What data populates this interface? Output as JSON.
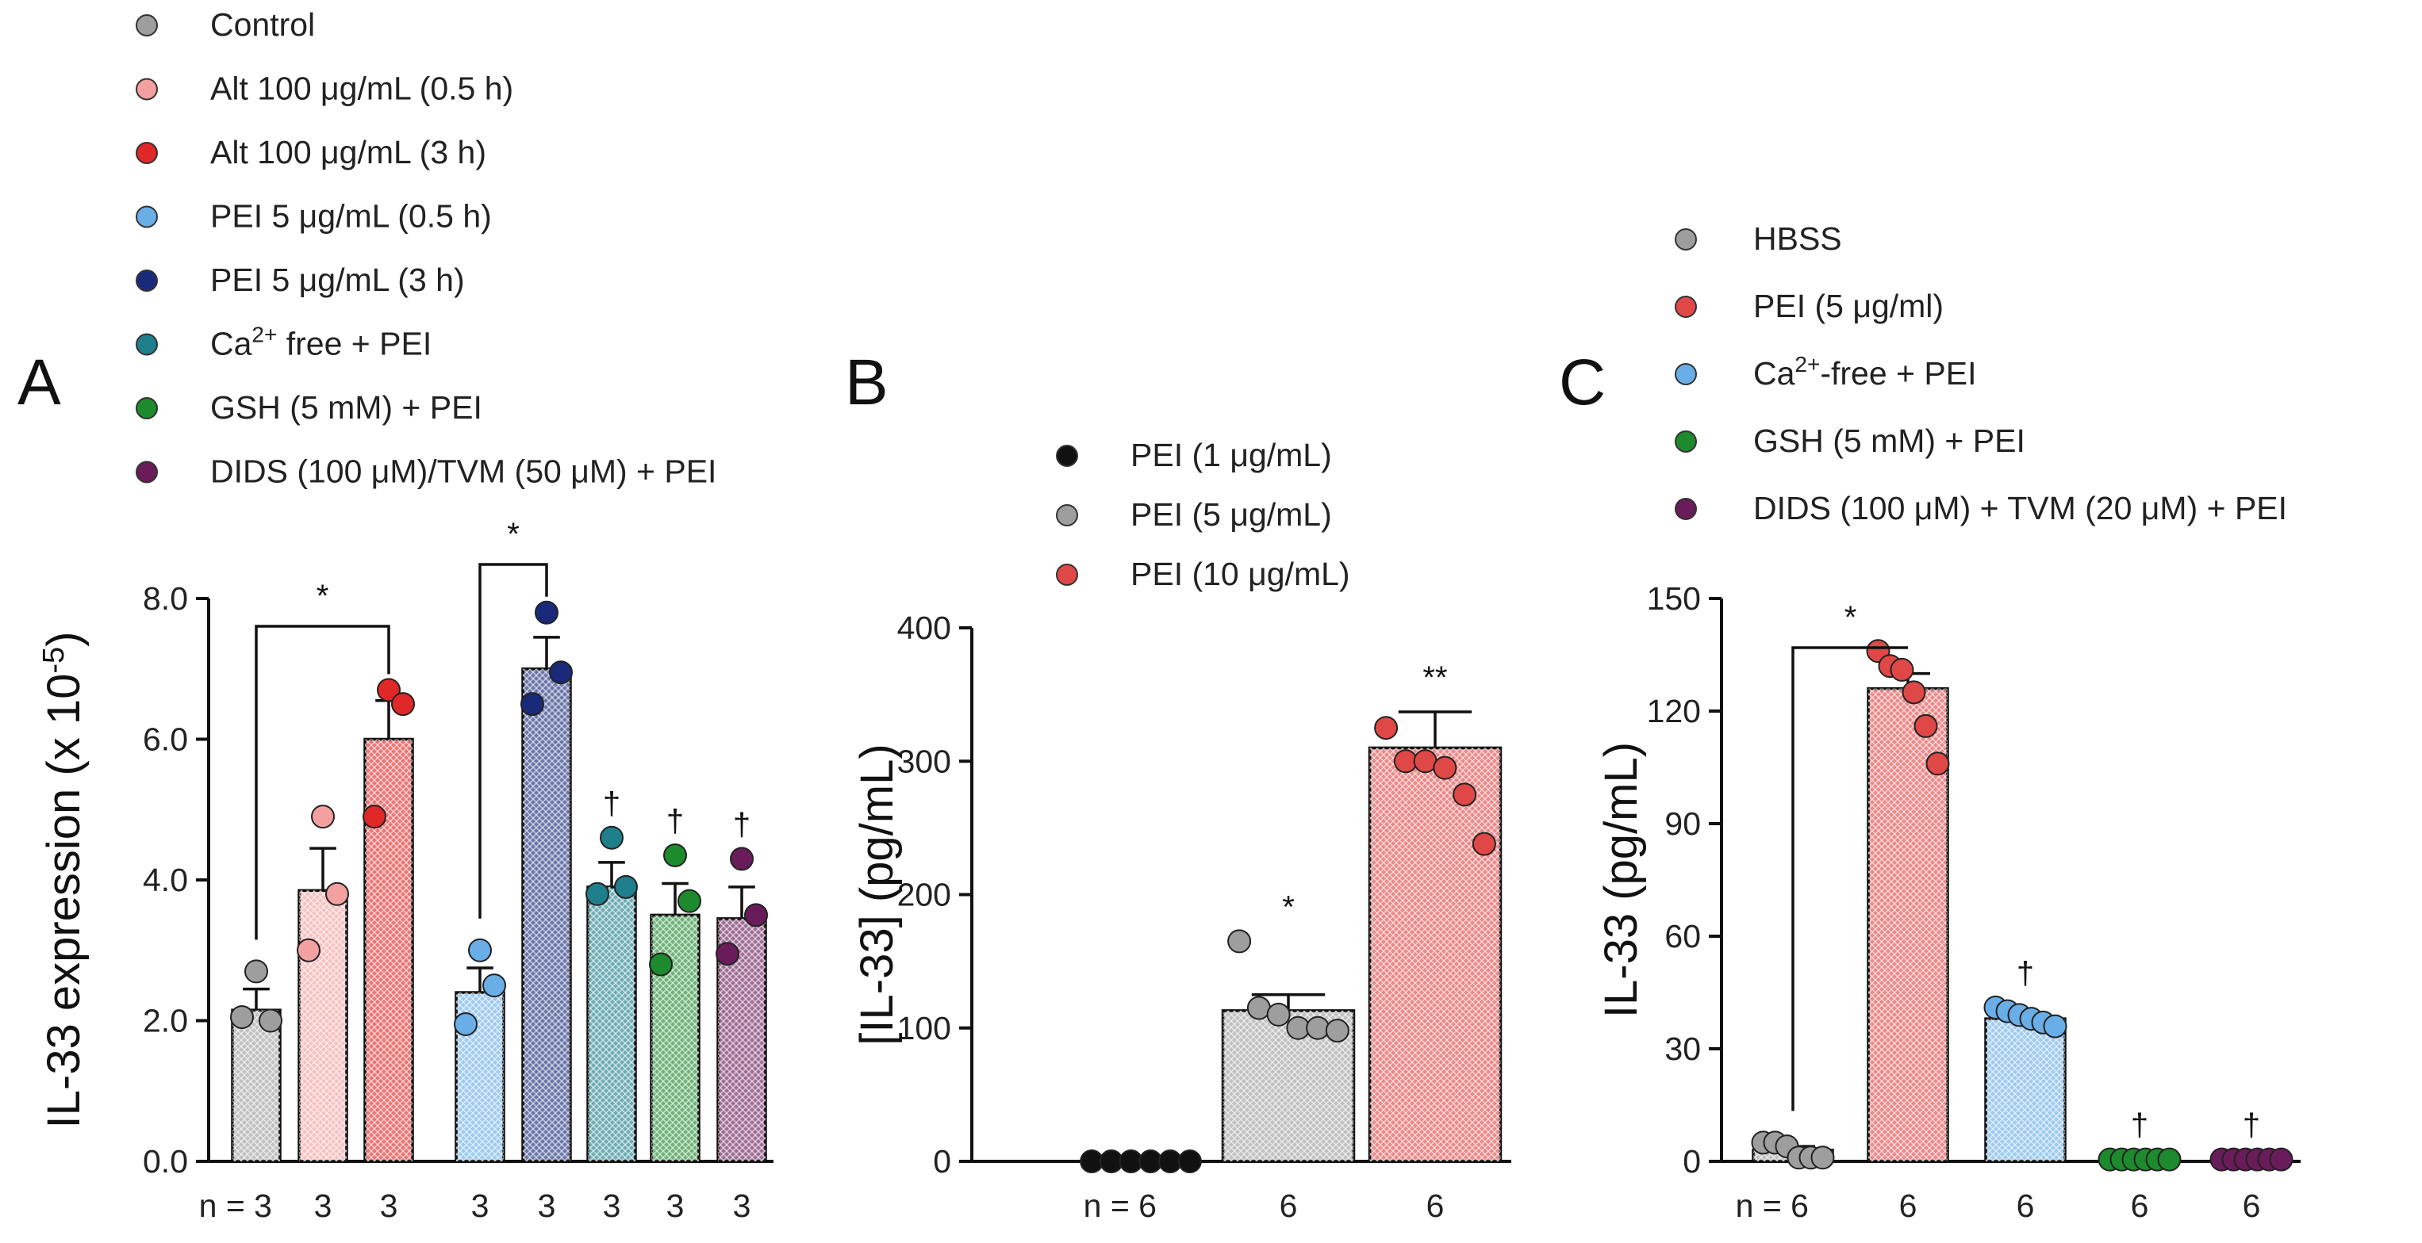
{
  "chart_data": [
    {
      "type": "bar",
      "panel": "A",
      "ylabel": "IL-33 expression (x 10",
      "ylabel_sup": "-5",
      "ylabel_tail": ")",
      "ylim": [
        0,
        8
      ],
      "y_ticks": [
        "0.0",
        "2.0",
        "4.0",
        "6.0",
        "8.0"
      ],
      "legend": [
        {
          "label": "Control",
          "color": "#9e9e9e"
        },
        {
          "label": "Alt 100 μg/mL (0.5 h)",
          "color": "#f2a0a0"
        },
        {
          "label": "Alt 100 μg/mL (3 h)",
          "color": "#e02828"
        },
        {
          "label": "PEI 5 μg/mL (0.5 h)",
          "color": "#6aaee8"
        },
        {
          "label": "PEI 5 μg/mL (3 h)",
          "color": "#1a2a7a"
        },
        {
          "label": "Ca",
          "label_sup": "2+",
          "label_tail": " free + PEI",
          "color": "#1f7f8c"
        },
        {
          "label": "GSH (5 mM) + PEI",
          "color": "#1e8a2e"
        },
        {
          "label": "DIDS (100 μM)/TVM (50 μM) + PEI",
          "color": "#6a1b5a"
        }
      ],
      "bars": [
        {
          "value": 2.15,
          "err": 0.3,
          "points": [
            2.7,
            2.0,
            2.05
          ],
          "color": "#9e9e9e",
          "n": "n = 3",
          "marker": ""
        },
        {
          "value": 3.85,
          "err": 0.6,
          "points": [
            4.9,
            3.8,
            3.0
          ],
          "color": "#f2a0a0",
          "n": "3",
          "marker": ""
        },
        {
          "value": 6.0,
          "err": 0.55,
          "points": [
            6.7,
            6.5,
            4.9
          ],
          "color": "#e02828",
          "n": "3",
          "marker": ""
        },
        {
          "value": 2.4,
          "err": 0.35,
          "points": [
            3.0,
            2.5,
            1.95
          ],
          "color": "#6aaee8",
          "n": "3",
          "marker": ""
        },
        {
          "value": 7.0,
          "err": 0.45,
          "points": [
            7.8,
            6.95,
            6.5
          ],
          "color": "#1a2a7a",
          "n": "3",
          "marker": ""
        },
        {
          "value": 3.9,
          "err": 0.35,
          "points": [
            4.6,
            3.9,
            3.8
          ],
          "color": "#1f7f8c",
          "n": "3",
          "marker": "†"
        },
        {
          "value": 3.5,
          "err": 0.45,
          "points": [
            4.35,
            3.7,
            2.8
          ],
          "color": "#1e8a2e",
          "n": "3",
          "marker": "†"
        },
        {
          "value": 3.45,
          "err": 0.45,
          "points": [
            4.3,
            3.5,
            2.95
          ],
          "color": "#6a1b5a",
          "n": "3",
          "marker": "†"
        }
      ],
      "brackets": [
        {
          "from": 0,
          "to": 2,
          "label": "*"
        },
        {
          "from": 3,
          "to": 4,
          "label": "*"
        }
      ]
    },
    {
      "type": "bar",
      "panel": "B",
      "ylabel": "[IL-33] (pg/mL)",
      "ylim": [
        0,
        400
      ],
      "y_ticks": [
        "0",
        "100",
        "200",
        "300",
        "400"
      ],
      "legend": [
        {
          "label": "PEI (1 μg/mL)",
          "color": "#111111"
        },
        {
          "label": "PEI (5 μg/mL)",
          "color": "#9e9e9e"
        },
        {
          "label": "PEI (10 μg/mL)",
          "color": "#e04848"
        }
      ],
      "bars": [
        {
          "value": 0,
          "err": 0,
          "points": [
            0,
            0,
            0,
            0,
            0,
            0
          ],
          "color": "#111111",
          "n": "n = 6",
          "marker": ""
        },
        {
          "value": 113,
          "err": 12,
          "points": [
            165,
            115,
            110,
            100,
            100,
            98
          ],
          "color": "#9e9e9e",
          "n": "6",
          "marker": "*"
        },
        {
          "value": 310,
          "err": 27,
          "points": [
            325,
            300,
            300,
            295,
            275,
            238
          ],
          "color": "#e04848",
          "n": "6",
          "marker": "**"
        }
      ],
      "brackets": []
    },
    {
      "type": "bar",
      "panel": "C",
      "ylabel": "IL-33 (pg/mL)",
      "ylim": [
        0,
        150
      ],
      "y_ticks": [
        "0",
        "30",
        "60",
        "90",
        "120",
        "150"
      ],
      "legend": [
        {
          "label": "HBSS",
          "color": "#9e9e9e"
        },
        {
          "label": "PEI (5 μg/ml)",
          "color": "#e04848"
        },
        {
          "label": "Ca",
          "label_sup": "2+",
          "label_tail": "-free + PEI",
          "color": "#6aaee8"
        },
        {
          "label": "GSH (5 mM) + PEI",
          "color": "#1e8a2e"
        },
        {
          "label": "DIDS (100 μM) + TVM (20 μM) + PEI",
          "color": "#6a1b5a"
        }
      ],
      "bars": [
        {
          "value": 3,
          "err": 1,
          "points": [
            5,
            5,
            4,
            1,
            1,
            1
          ],
          "color": "#9e9e9e",
          "n": "n = 6",
          "marker": ""
        },
        {
          "value": 126,
          "err": 4,
          "points": [
            136,
            132,
            131,
            125,
            116,
            106
          ],
          "color": "#e04848",
          "n": "6",
          "marker": ""
        },
        {
          "value": 38,
          "err": 1.5,
          "points": [
            41,
            40,
            39,
            38,
            37,
            36
          ],
          "color": "#6aaee8",
          "n": "6",
          "marker": "†"
        },
        {
          "value": 0.5,
          "err": 0,
          "points": [
            0.5,
            0.5,
            0.5,
            0.5,
            0.5,
            0.5
          ],
          "color": "#1e8a2e",
          "n": "6",
          "marker": "†"
        },
        {
          "value": 0.5,
          "err": 0,
          "points": [
            0.5,
            0.5,
            0.5,
            0.5,
            0.5,
            0.5
          ],
          "color": "#6a1b5a",
          "n": "6",
          "marker": "†"
        }
      ],
      "brackets": [
        {
          "from": 0,
          "to": 1,
          "label": "*"
        }
      ]
    }
  ]
}
